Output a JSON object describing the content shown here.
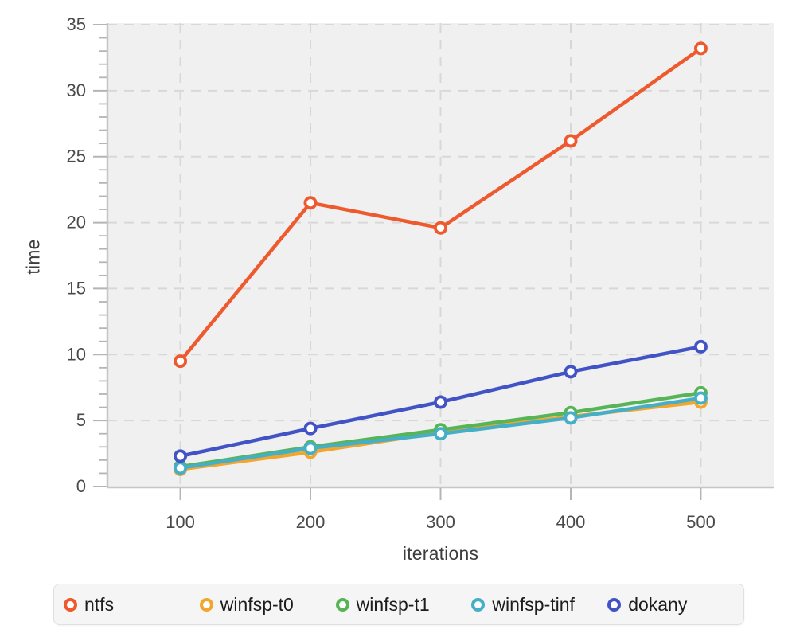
{
  "chart_data": {
    "type": "line",
    "title": "",
    "xlabel": "iterations",
    "ylabel": "time",
    "x": [
      100,
      200,
      300,
      400,
      500
    ],
    "xlim": [
      44,
      556
    ],
    "ylim": [
      0,
      35
    ],
    "x_ticks": [
      100,
      200,
      300,
      400,
      500
    ],
    "y_major_ticks": [
      0,
      5,
      10,
      15,
      20,
      25,
      30,
      35
    ],
    "y_minor_tick_step": 1,
    "grid": "dashed-major-both-axes",
    "legend_position": "bottom",
    "plot_bg_color": "#f0f0f0",
    "gridline_color": "#d8d8d8",
    "spine_color": "#c6c6c6",
    "tick_color": "#b5b5b5",
    "tick_label_color": "#4a4a4a",
    "series": [
      {
        "name": "ntfs",
        "color": "#ee5a2e",
        "values": [
          9.5,
          21.5,
          19.6,
          26.2,
          33.2
        ]
      },
      {
        "name": "winfsp-t0",
        "color": "#f4a52b",
        "values": [
          1.3,
          2.6,
          4.1,
          5.3,
          6.4
        ]
      },
      {
        "name": "winfsp-t1",
        "color": "#57b457",
        "values": [
          1.5,
          3.0,
          4.3,
          5.6,
          7.1
        ]
      },
      {
        "name": "winfsp-tinf",
        "color": "#44afc6",
        "values": [
          1.4,
          2.9,
          4.0,
          5.2,
          6.7
        ]
      },
      {
        "name": "dokany",
        "color": "#4254c5",
        "values": [
          2.3,
          4.4,
          6.4,
          8.7,
          10.6
        ]
      }
    ]
  },
  "axes": {
    "x_label": "iterations",
    "y_label": "time"
  }
}
